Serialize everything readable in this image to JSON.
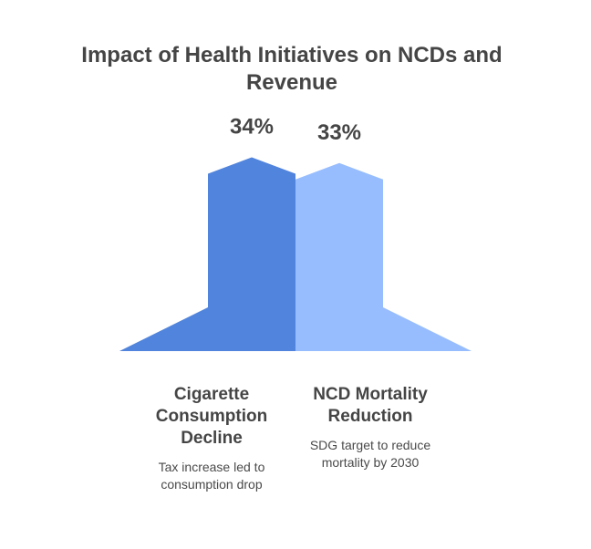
{
  "chart_data": {
    "type": "area",
    "title": "Impact of Health Initiatives on NCDs and Revenue",
    "series": [
      {
        "name": "Cigarette Consumption Decline",
        "value": 34,
        "value_label": "34%",
        "description": "Tax increase led to consumption drop",
        "color": "#5184dc"
      },
      {
        "name": "NCD Mortality Reduction",
        "value": 33,
        "value_label": "33%",
        "description": "SDG target to reduce mortality by 2030",
        "color": "#97bdff"
      }
    ],
    "ylim": [
      0,
      36
    ],
    "grid": false
  }
}
